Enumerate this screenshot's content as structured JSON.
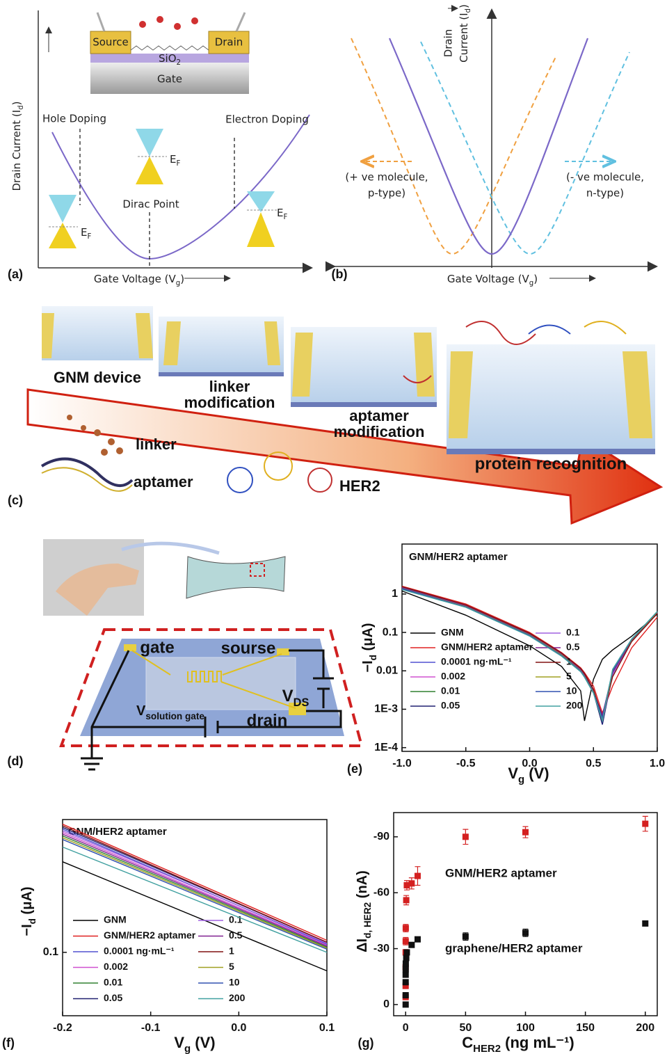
{
  "panel_a": {
    "label": "(a)",
    "source": "Source",
    "drain": "Drain",
    "oxide": [
      "SiO",
      "2"
    ],
    "gate": "Gate",
    "y_label": [
      "Drain Current (I",
      "d",
      ")"
    ],
    "hole_doping": "Hole Doping",
    "electron_doping": "Electron Doping",
    "fermi_labels": [
      [
        "E",
        "F"
      ],
      [
        "E",
        "F"
      ],
      [
        "E",
        "F"
      ]
    ],
    "dirac_point": "Dirac Point",
    "x_label": [
      "Gate Voltage (V",
      "g",
      ")"
    ]
  },
  "panel_b": {
    "label": "(b)",
    "y_label_1": "Drain",
    "y_label_2": [
      "Current (I",
      "d",
      ")"
    ],
    "p_type": [
      "(+ ve molecule,",
      "p-type)"
    ],
    "n_type": [
      "(- ve molecule,",
      "n-type)"
    ],
    "x_label": [
      "Gate Voltage (V",
      "g",
      ")"
    ]
  },
  "panel_c": {
    "label": "(c)",
    "gnm_device": "GNM device",
    "linker_modification": [
      "linker",
      "modification"
    ],
    "aptamer_modification": [
      "aptamer",
      "modification"
    ],
    "protein_recognition": "protein recognition",
    "linker": "linker",
    "aptamer": "aptamer",
    "her2": "HER2"
  },
  "panel_d": {
    "label": "(d)",
    "gate": "gate",
    "source": "sourse",
    "v_ds": [
      "V",
      "DS"
    ],
    "v_gate": [
      "V",
      "solution gate"
    ],
    "drain": "drain"
  },
  "chart_data": [
    {
      "panel": "(e)",
      "type": "line",
      "title": "GNM/HER2 aptamer",
      "log_y": true,
      "x_label": [
        "V",
        "g",
        " (V)"
      ],
      "y_label": [
        "−I",
        "d",
        " (μA)"
      ],
      "x": [
        -1,
        -0.5,
        0,
        0.25,
        0.4,
        0.43,
        0.5,
        0.57,
        0.65,
        0.8,
        1
      ],
      "xlim": [
        -1,
        1
      ],
      "ylim": [
        8e-05,
        20
      ],
      "xticks": [
        {
          "value": -1,
          "label": "-1.0"
        },
        -0.5,
        {
          "value": 0,
          "label": "0.0"
        },
        0.5,
        {
          "value": 1,
          "label": "1.0"
        }
      ],
      "yticks": [
        {
          "value": 0.0001,
          "label": "1E-4"
        },
        {
          "value": 0.001,
          "label": "1E-3"
        },
        0.01,
        0.1,
        1
      ],
      "series": [
        {
          "name": "GNM",
          "color": "#000000",
          "values": [
            1.2,
            0.28,
            0.045,
            0.013,
            0.003,
            0.0005,
            0.006,
            0.02,
            0.035,
            0.08,
            0.3
          ]
        },
        {
          "name": "GNM/HER2 aptamer",
          "color": "#e02020",
          "values": [
            1.6,
            0.55,
            0.1,
            0.03,
            0.012,
            0.009,
            0.004,
            0.0008,
            0.004,
            0.04,
            0.25
          ]
        },
        {
          "name": "0.0001 ng·mL⁻¹",
          "color": "#5050d0",
          "values": [
            1.5,
            0.5,
            0.09,
            0.028,
            0.011,
            0.008,
            0.003,
            0.0004,
            0.008,
            0.06,
            0.32
          ]
        },
        {
          "name": "0.002",
          "color": "#d050d0",
          "values": [
            1.45,
            0.48,
            0.088,
            0.027,
            0.01,
            0.0075,
            0.003,
            0.0005,
            0.009,
            0.062,
            0.33
          ]
        },
        {
          "name": "0.01",
          "color": "#308030",
          "values": [
            1.4,
            0.47,
            0.085,
            0.026,
            0.01,
            0.007,
            0.0028,
            0.0006,
            0.01,
            0.065,
            0.34
          ]
        },
        {
          "name": "0.05",
          "color": "#202070",
          "values": [
            1.35,
            0.46,
            0.083,
            0.025,
            0.0095,
            0.007,
            0.0027,
            0.0004,
            0.009,
            0.063,
            0.33
          ]
        },
        {
          "name": "0.1",
          "color": "#a060e0",
          "values": [
            1.5,
            0.5,
            0.092,
            0.028,
            0.011,
            0.008,
            0.0032,
            0.0005,
            0.008,
            0.06,
            0.32
          ]
        },
        {
          "name": "0.5",
          "color": "#802090",
          "values": [
            1.45,
            0.49,
            0.09,
            0.027,
            0.0105,
            0.0078,
            0.003,
            0.0007,
            0.009,
            0.061,
            0.33
          ]
        },
        {
          "name": "1",
          "color": "#801010",
          "values": [
            1.55,
            0.52,
            0.095,
            0.029,
            0.0115,
            0.0085,
            0.0033,
            0.0006,
            0.007,
            0.058,
            0.31
          ]
        },
        {
          "name": "5",
          "color": "#a0a020",
          "values": [
            1.4,
            0.47,
            0.086,
            0.026,
            0.01,
            0.0072,
            0.0028,
            0.0005,
            0.01,
            0.064,
            0.34
          ]
        },
        {
          "name": "10",
          "color": "#3050b0",
          "values": [
            1.38,
            0.46,
            0.084,
            0.025,
            0.0098,
            0.007,
            0.0027,
            0.0006,
            0.01,
            0.066,
            0.35
          ]
        },
        {
          "name": "200",
          "color": "#40a0a0",
          "values": [
            1.3,
            0.45,
            0.08,
            0.024,
            0.0095,
            0.0068,
            0.0026,
            0.0005,
            0.011,
            0.068,
            0.35
          ]
        }
      ]
    },
    {
      "panel": "(f)",
      "type": "line",
      "title": "GNM/HER2 aptamer",
      "log_y": true,
      "x_label": [
        "V",
        "g",
        " (V)"
      ],
      "y_label": [
        "−I",
        "d",
        " (μA)"
      ],
      "x": [
        -0.2,
        0.1
      ],
      "xlim": [
        -0.2,
        0.1
      ],
      "ylim": [
        0.055,
        0.35
      ],
      "xticks": [
        -0.2,
        -0.1,
        {
          "value": 0,
          "label": "0.0"
        },
        0.1
      ],
      "yticks": [
        0.1
      ],
      "series": [
        {
          "name": "GNM",
          "color": "#000000",
          "values": [
            0.235,
            0.084
          ]
        },
        {
          "name": "GNM/HER2 aptamer",
          "color": "#e02020",
          "values": [
            0.335,
            0.112
          ]
        },
        {
          "name": "0.0001 ng·mL⁻¹",
          "color": "#5050d0",
          "values": [
            0.32,
            0.108
          ]
        },
        {
          "name": "0.002",
          "color": "#d050d0",
          "values": [
            0.31,
            0.107
          ]
        },
        {
          "name": "0.01",
          "color": "#308030",
          "values": [
            0.3,
            0.105
          ]
        },
        {
          "name": "0.05",
          "color": "#202070",
          "values": [
            0.325,
            0.11
          ]
        },
        {
          "name": "0.1",
          "color": "#a060e0",
          "values": [
            0.315,
            0.109
          ]
        },
        {
          "name": "0.5",
          "color": "#802090",
          "values": [
            0.305,
            0.106
          ]
        },
        {
          "name": "1",
          "color": "#801010",
          "values": [
            0.33,
            0.11
          ]
        },
        {
          "name": "5",
          "color": "#a0a020",
          "values": [
            0.295,
            0.104
          ]
        },
        {
          "name": "10",
          "color": "#3050b0",
          "values": [
            0.29,
            0.103
          ]
        },
        {
          "name": "200",
          "color": "#40a0a0",
          "values": [
            0.27,
            0.1
          ]
        }
      ]
    },
    {
      "panel": "(g)",
      "type": "scatter",
      "x_label": [
        "C",
        "HER2",
        " (ng mL⁻¹)"
      ],
      "y_label": [
        "ΔI",
        "d, HER2",
        " (nA)"
      ],
      "x": [
        0,
        0.0001,
        0.002,
        0.01,
        0.05,
        0.1,
        0.5,
        1,
        5,
        10,
        50,
        100,
        200
      ],
      "xlim": [
        -10,
        210
      ],
      "ylim": [
        6,
        -103
      ],
      "xticks": [
        0,
        50,
        100,
        150,
        200
      ],
      "yticks": [
        0,
        -30,
        -60,
        -90
      ],
      "series": [
        {
          "name": "GNM/HER2 aptamer",
          "color": "#d42020",
          "values": [
            -4,
            -10,
            -20,
            -28,
            -34,
            -41,
            -56,
            -64,
            -65,
            -69,
            -90,
            -92.5,
            -97
          ],
          "errors": [
            1,
            1,
            1.5,
            1.5,
            2,
            2,
            2.5,
            2.5,
            3,
            5,
            4,
            3,
            4
          ]
        },
        {
          "name": "graphene/HER2 aptamer",
          "color": "#111111",
          "values": [
            0,
            -5,
            -12,
            -16,
            -19,
            -22,
            -25,
            -28,
            -32,
            -35,
            -36.5,
            -38.5,
            -43.5
          ],
          "errors": [
            1,
            1,
            1,
            1,
            1,
            1,
            1,
            1,
            1,
            1,
            2,
            2,
            1
          ]
        }
      ]
    }
  ]
}
